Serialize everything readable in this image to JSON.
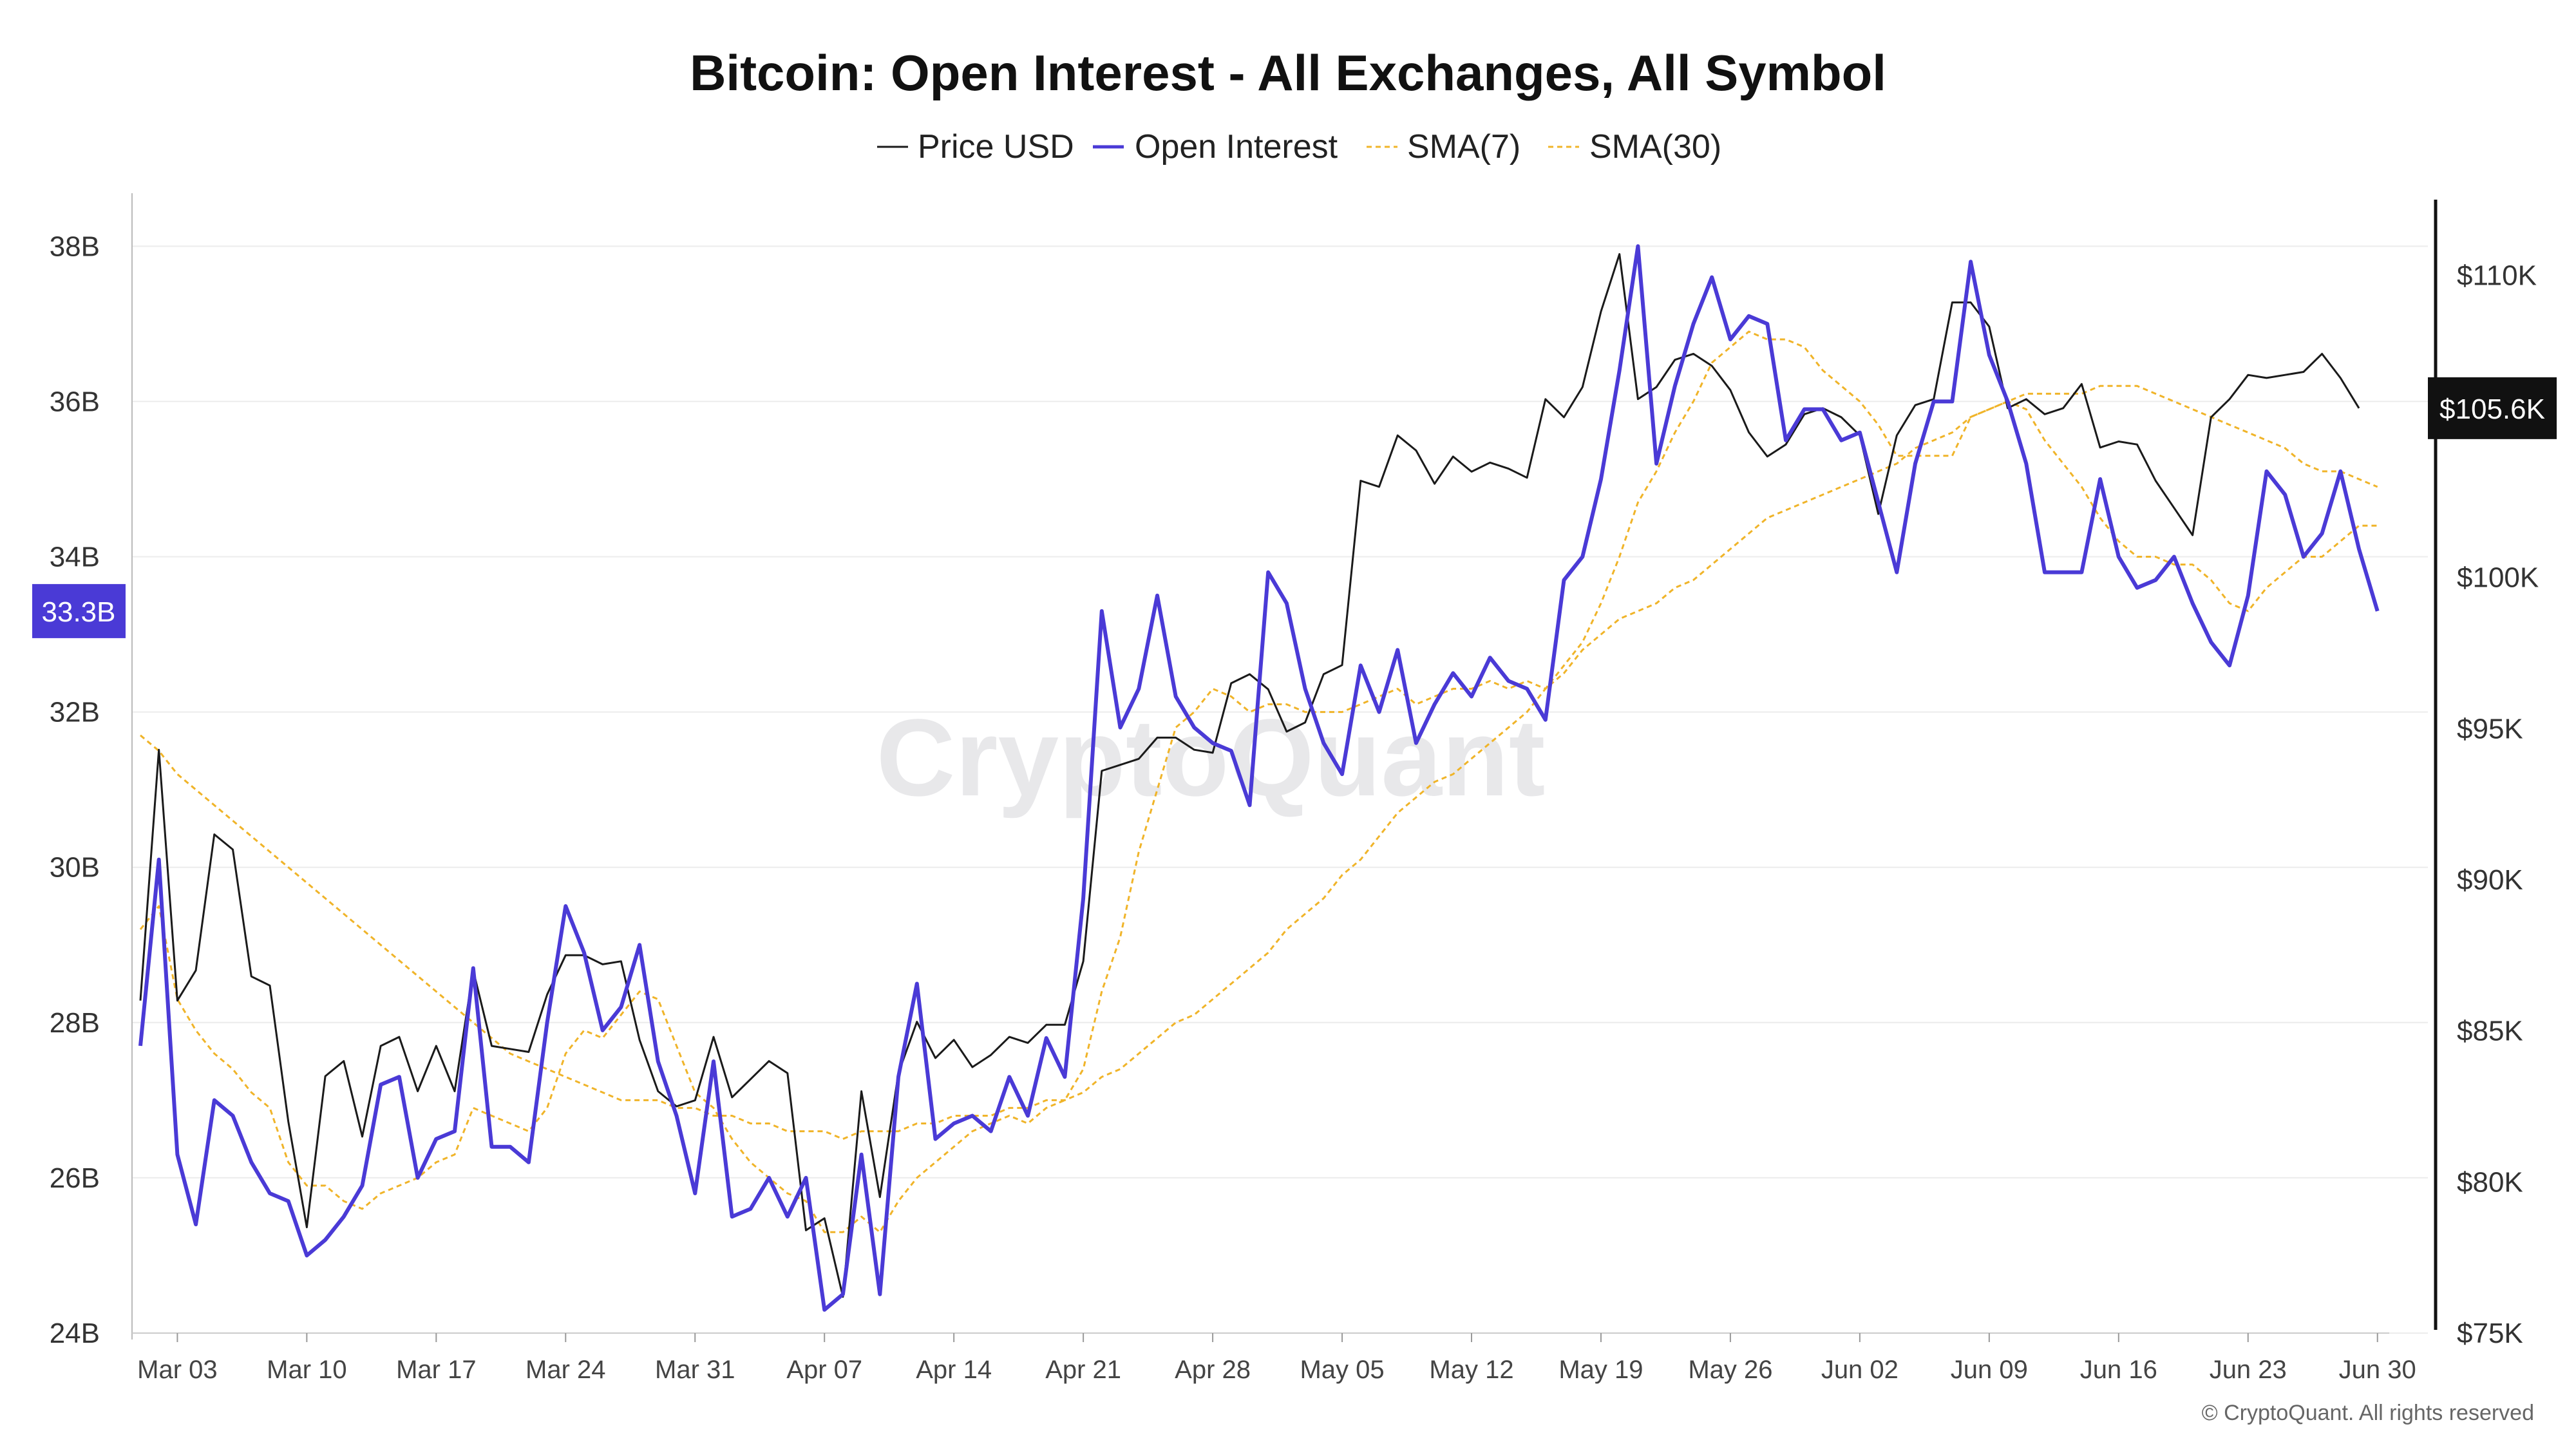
{
  "chart_data": {
    "type": "line",
    "title": "Bitcoin: Open Interest - All Exchanges, All Symbol",
    "legend_position": "top-center",
    "grid": true,
    "watermark": "CryptoQuant",
    "copyright": "© CryptoQuant. All rights reserved",
    "colors": {
      "price": "#1a1a1a",
      "open_interest": "#4a3ad6",
      "sma7": "#f0b429",
      "sma30": "#f0b429",
      "oi_badge": "#4a3ad6",
      "price_badge": "#111111"
    },
    "x_ticks": [
      "Mar 03",
      "Mar 10",
      "Mar 17",
      "Mar 24",
      "Mar 31",
      "Apr 07",
      "Apr 14",
      "Apr 21",
      "Apr 28",
      "May 05",
      "May 12",
      "May 19",
      "May 26",
      "Jun 02",
      "Jun 09",
      "Jun 16",
      "Jun 23",
      "Jun 30"
    ],
    "x_tick_index": [
      2,
      9,
      16,
      23,
      30,
      37,
      44,
      51,
      58,
      65,
      72,
      79,
      86,
      93,
      100,
      107,
      114,
      121
    ],
    "y_left": {
      "range": [
        24,
        38.6
      ],
      "ticks": [
        24,
        26,
        28,
        30,
        32,
        34,
        36,
        38
      ],
      "tick_labels": [
        "24B",
        "26B",
        "28B",
        "30B",
        "32B",
        "34B",
        "36B",
        "38B"
      ]
    },
    "y_right": {
      "range": [
        75,
        112.5
      ],
      "ticks": [
        75,
        80,
        85,
        90,
        95,
        100,
        105,
        110
      ],
      "tick_labels": [
        "$75K",
        "$80K",
        "$85K",
        "$90K",
        "$95K",
        "$100K",
        "$105K",
        "$110K"
      ]
    },
    "current_oi_label": "33.3B",
    "current_oi_value": 33.3,
    "current_price_label": "$105.6K",
    "current_price_value": 105.6,
    "series": [
      {
        "name": "Price USD",
        "axis": "right",
        "values": [
          86.0,
          94.3,
          86.0,
          87.0,
          91.5,
          91.0,
          86.8,
          86.5,
          82.0,
          78.5,
          83.5,
          84.0,
          81.5,
          84.5,
          84.8,
          83.0,
          84.5,
          83.0,
          87.0,
          84.5,
          84.4,
          84.3,
          86.2,
          87.5,
          87.5,
          87.2,
          87.3,
          84.7,
          83.0,
          82.5,
          82.7,
          84.8,
          82.8,
          83.4,
          84.0,
          83.6,
          78.4,
          78.8,
          76.2,
          83.0,
          79.5,
          83.6,
          85.3,
          84.1,
          84.7,
          83.8,
          84.2,
          84.8,
          84.6,
          85.2,
          85.2,
          87.3,
          93.6,
          93.8,
          94.0,
          94.7,
          94.7,
          94.3,
          94.2,
          96.5,
          96.8,
          96.3,
          94.9,
          95.2,
          96.8,
          97.1,
          103.2,
          103.0,
          104.7,
          104.2,
          103.1,
          104.0,
          103.5,
          103.8,
          103.6,
          103.3,
          105.9,
          105.3,
          106.3,
          108.8,
          110.7,
          105.9,
          106.3,
          107.2,
          107.4,
          107.0,
          106.2,
          104.8,
          104.0,
          104.4,
          105.4,
          105.6,
          105.3,
          104.7,
          102.1,
          104.7,
          105.7,
          105.9,
          109.1,
          109.1,
          108.3,
          105.6,
          105.9,
          105.4,
          105.6,
          106.4,
          104.3,
          104.5,
          104.4,
          103.2,
          102.3,
          101.4,
          105.3,
          105.9,
          106.7,
          106.6,
          106.7,
          106.8,
          107.4,
          106.6,
          105.6
        ],
        "line": "solid"
      },
      {
        "name": "Open Interest",
        "axis": "left",
        "values": [
          27.7,
          30.1,
          26.3,
          25.4,
          27.0,
          26.8,
          26.2,
          25.8,
          25.7,
          25.0,
          25.2,
          25.5,
          25.9,
          27.2,
          27.3,
          26.0,
          26.5,
          26.6,
          28.7,
          26.4,
          26.4,
          26.2,
          28.0,
          29.5,
          28.9,
          27.9,
          28.2,
          29.0,
          27.5,
          26.8,
          25.8,
          27.5,
          25.5,
          25.6,
          26.0,
          25.5,
          26.0,
          24.3,
          24.5,
          26.3,
          24.5,
          27.3,
          28.5,
          26.5,
          26.7,
          26.8,
          26.6,
          27.3,
          26.8,
          27.8,
          27.3,
          29.6,
          33.3,
          31.8,
          32.3,
          33.5,
          32.2,
          31.8,
          31.6,
          31.5,
          30.8,
          33.8,
          33.4,
          32.3,
          31.6,
          31.2,
          32.6,
          32.0,
          32.8,
          31.6,
          32.1,
          32.5,
          32.2,
          32.7,
          32.4,
          32.3,
          31.9,
          33.7,
          34.0,
          35.0,
          36.4,
          38.0,
          35.2,
          36.2,
          37.0,
          37.6,
          36.8,
          37.1,
          37.0,
          35.5,
          35.9,
          35.9,
          35.5,
          35.6,
          34.7,
          33.8,
          35.2,
          36.0,
          36.0,
          37.8,
          36.6,
          36.0,
          35.2,
          33.8,
          33.8,
          33.8,
          35.0,
          34.0,
          33.6,
          33.7,
          34.0,
          33.4,
          32.9,
          32.6,
          33.5,
          35.1,
          34.8,
          34.0,
          34.3,
          35.1,
          34.1,
          33.3
        ],
        "line": "solid"
      },
      {
        "name": "SMA(7)",
        "axis": "left",
        "values": [
          29.2,
          29.5,
          28.3,
          27.9,
          27.6,
          27.4,
          27.1,
          26.9,
          26.2,
          25.9,
          25.9,
          25.7,
          25.6,
          25.8,
          25.9,
          26.0,
          26.2,
          26.3,
          26.9,
          26.8,
          26.7,
          26.6,
          26.9,
          27.6,
          27.9,
          27.8,
          28.1,
          28.4,
          28.3,
          27.7,
          27.1,
          26.9,
          26.5,
          26.2,
          26.0,
          25.8,
          25.7,
          25.3,
          25.3,
          25.5,
          25.3,
          25.7,
          26.0,
          26.2,
          26.4,
          26.6,
          26.7,
          26.8,
          26.7,
          26.9,
          27.0,
          27.4,
          28.4,
          29.1,
          30.2,
          31.0,
          31.8,
          32.0,
          32.3,
          32.2,
          32.0,
          32.1,
          32.1,
          32.0,
          32.0,
          32.0,
          32.1,
          32.2,
          32.3,
          32.1,
          32.2,
          32.3,
          32.3,
          32.4,
          32.3,
          32.4,
          32.3,
          32.6,
          32.9,
          33.4,
          34.0,
          34.7,
          35.1,
          35.6,
          36.0,
          36.5,
          36.7,
          36.9,
          36.8,
          36.8,
          36.7,
          36.4,
          36.2,
          36.0,
          35.7,
          35.3,
          35.3,
          35.3,
          35.3,
          35.8,
          35.9,
          36.0,
          35.9,
          35.5,
          35.2,
          34.9,
          34.5,
          34.2,
          34.0,
          34.0,
          33.9,
          33.9,
          33.7,
          33.4,
          33.3,
          33.6,
          33.8,
          34.0,
          34.0,
          34.2,
          34.4,
          34.4
        ],
        "line": "dashed"
      },
      {
        "name": "SMA(30)",
        "axis": "left",
        "values": [
          31.7,
          31.5,
          31.2,
          31.0,
          30.8,
          30.6,
          30.4,
          30.2,
          30.0,
          29.8,
          29.6,
          29.4,
          29.2,
          29.0,
          28.8,
          28.6,
          28.4,
          28.2,
          28.0,
          27.8,
          27.6,
          27.5,
          27.4,
          27.3,
          27.2,
          27.1,
          27.0,
          27.0,
          27.0,
          26.9,
          26.9,
          26.8,
          26.8,
          26.7,
          26.7,
          26.6,
          26.6,
          26.6,
          26.5,
          26.6,
          26.6,
          26.6,
          26.7,
          26.7,
          26.8,
          26.8,
          26.8,
          26.9,
          26.9,
          27.0,
          27.0,
          27.1,
          27.3,
          27.4,
          27.6,
          27.8,
          28.0,
          28.1,
          28.3,
          28.5,
          28.7,
          28.9,
          29.2,
          29.4,
          29.6,
          29.9,
          30.1,
          30.4,
          30.7,
          30.9,
          31.1,
          31.2,
          31.4,
          31.6,
          31.8,
          32.0,
          32.3,
          32.5,
          32.8,
          33.0,
          33.2,
          33.3,
          33.4,
          33.6,
          33.7,
          33.9,
          34.1,
          34.3,
          34.5,
          34.6,
          34.7,
          34.8,
          34.9,
          35.0,
          35.1,
          35.2,
          35.4,
          35.5,
          35.6,
          35.8,
          35.9,
          36.0,
          36.1,
          36.1,
          36.1,
          36.1,
          36.2,
          36.2,
          36.2,
          36.1,
          36.0,
          35.9,
          35.8,
          35.7,
          35.6,
          35.5,
          35.4,
          35.2,
          35.1,
          35.1,
          35.0,
          34.9
        ],
        "line": "dashed"
      }
    ]
  }
}
